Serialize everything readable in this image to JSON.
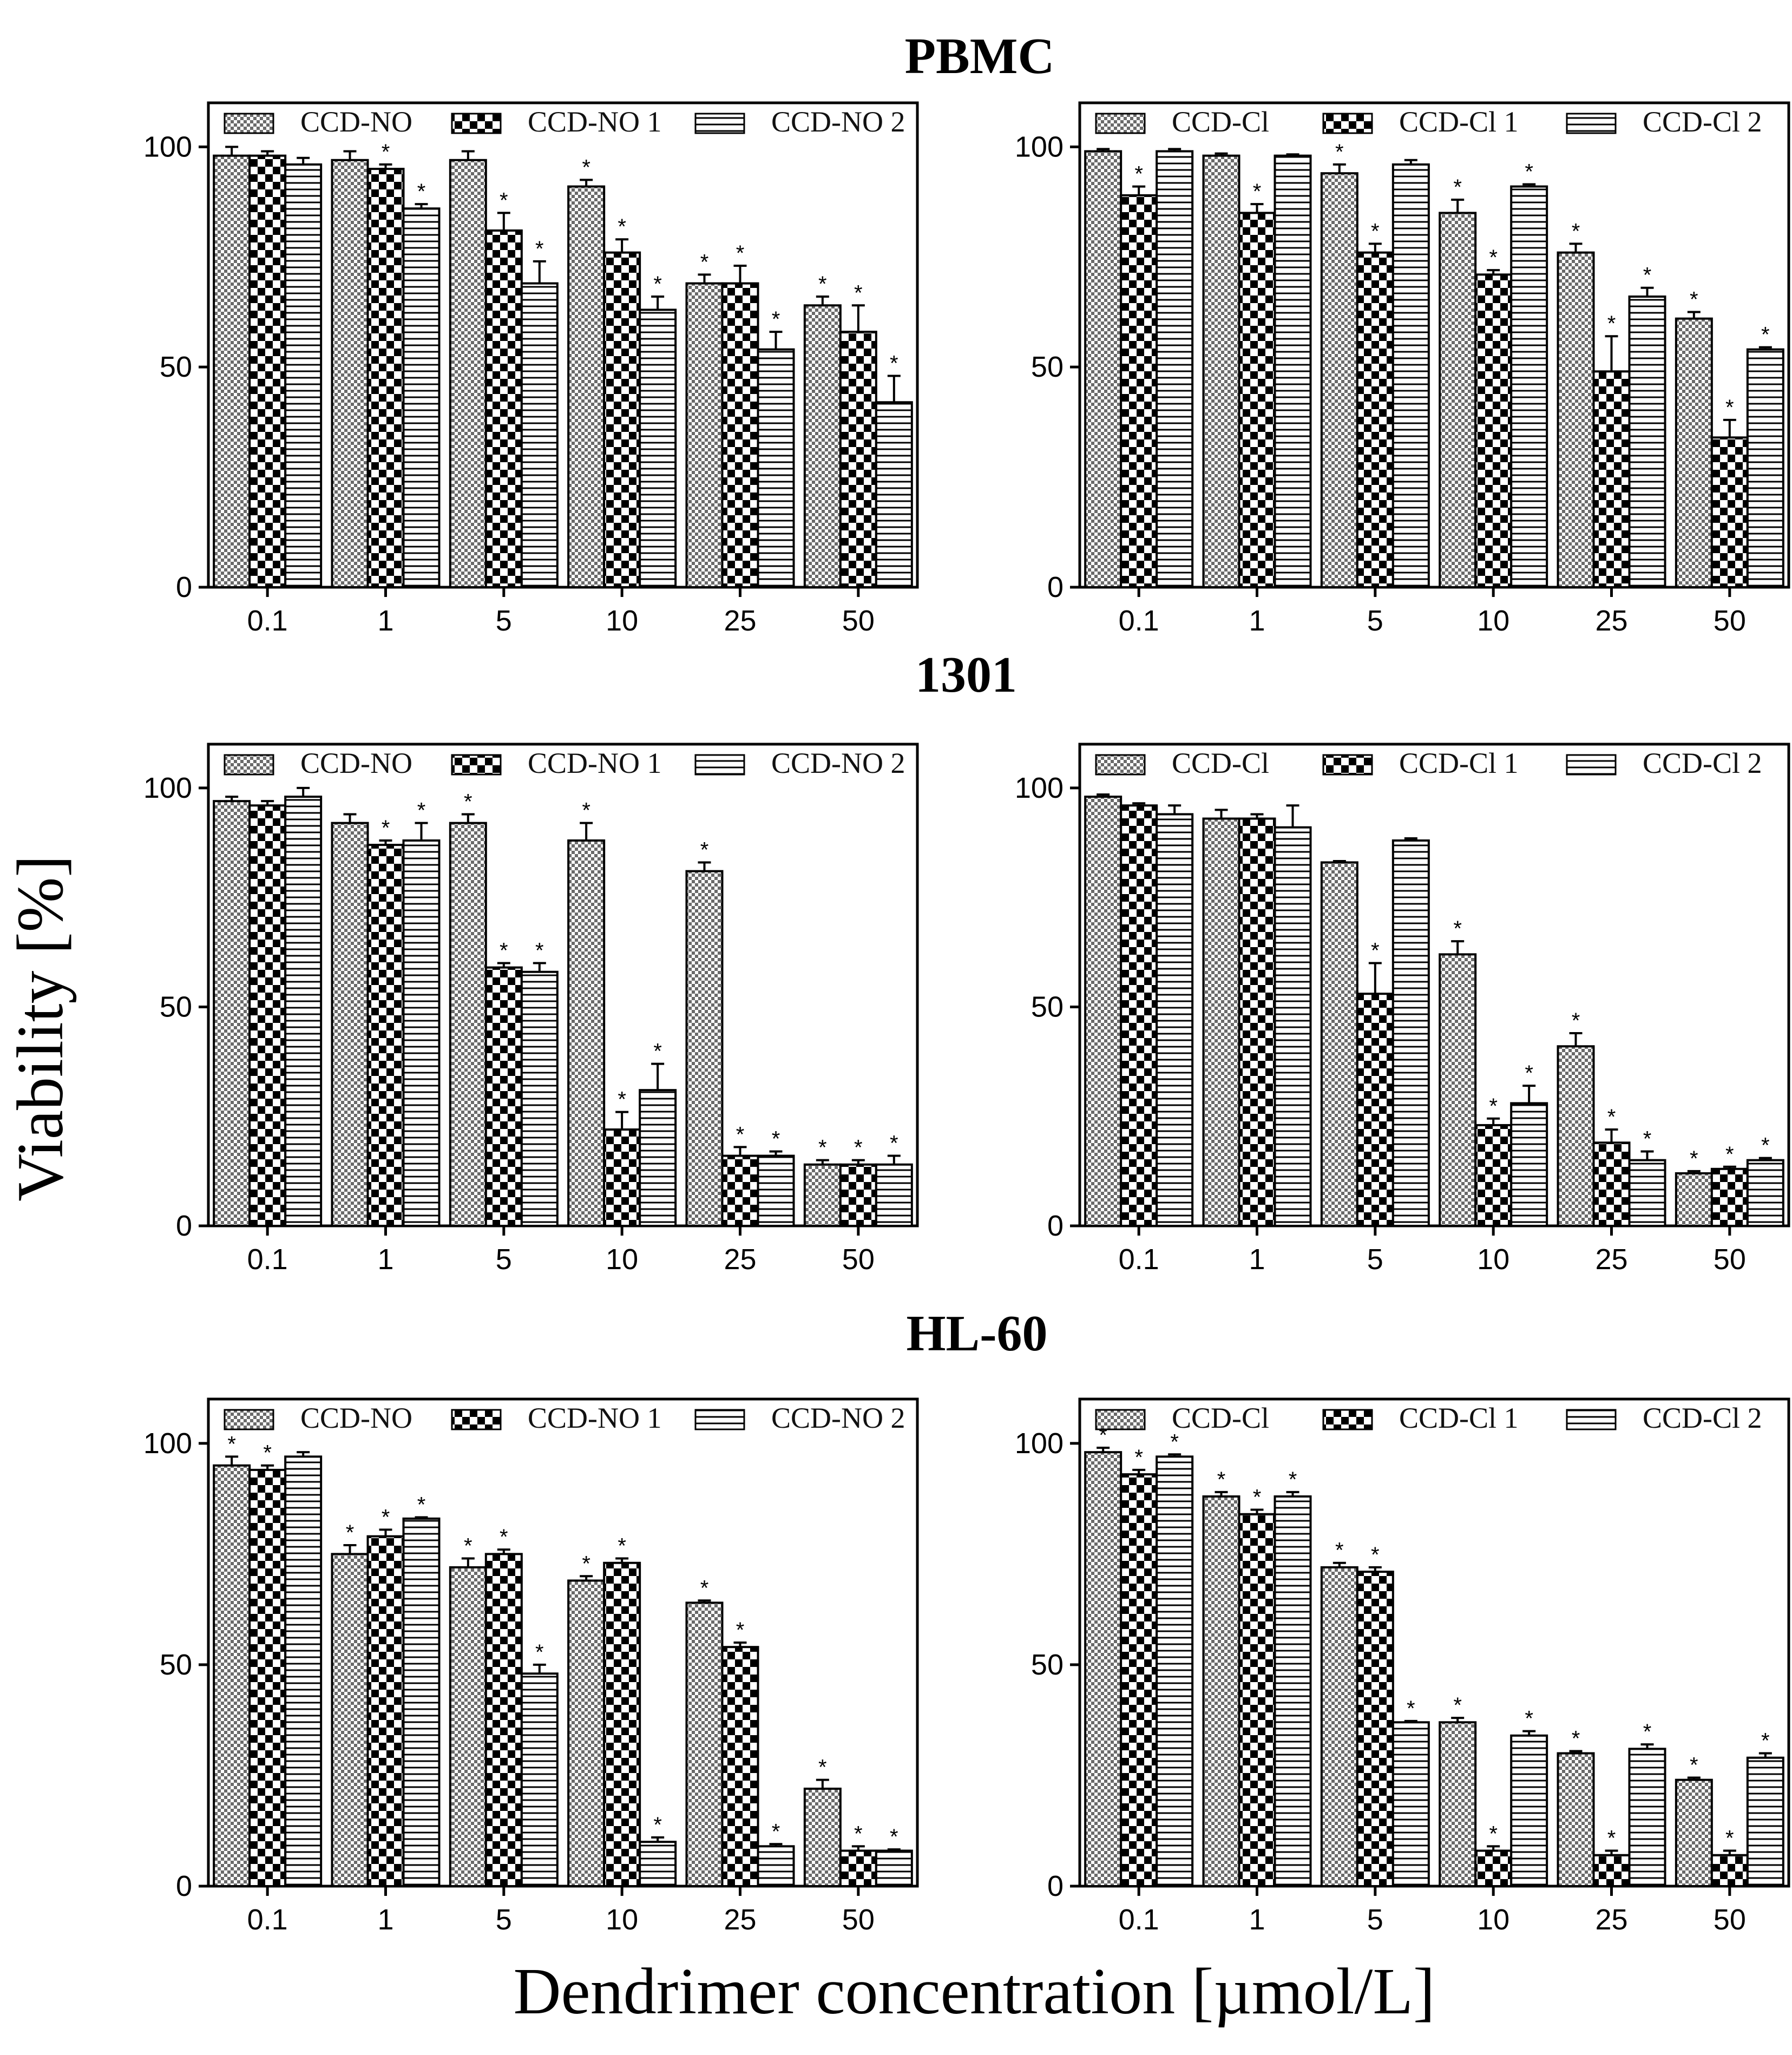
{
  "figure": {
    "ylabel": "Viability [%]",
    "xlabel": "Dendrimer concentration [µmol/L]"
  },
  "rows": [
    "PBMC",
    "1301",
    "HL-60"
  ],
  "chart_data": [
    {
      "type": "bar",
      "row": "PBMC",
      "column": "left",
      "categories": [
        "0.1",
        "1",
        "5",
        "10",
        "25",
        "50"
      ],
      "ylim": [
        0,
        110
      ],
      "yticks": [
        "0",
        "50",
        "100"
      ],
      "series": [
        {
          "name": "CCD-NO",
          "values": [
            98,
            97,
            97,
            91,
            69,
            64
          ],
          "errors": [
            2,
            2,
            2,
            1.5,
            2,
            2
          ],
          "significant": [
            false,
            false,
            false,
            true,
            true,
            true
          ]
        },
        {
          "name": "CCD-NO 1",
          "values": [
            98,
            95,
            81,
            76,
            69,
            58
          ],
          "errors": [
            1,
            1,
            4,
            3,
            4,
            6
          ],
          "significant": [
            false,
            true,
            true,
            true,
            true,
            true
          ]
        },
        {
          "name": "CCD-NO 2",
          "values": [
            96,
            86,
            69,
            63,
            54,
            42
          ],
          "errors": [
            1.5,
            1,
            5,
            3,
            4,
            6
          ],
          "significant": [
            false,
            true,
            true,
            true,
            true,
            true
          ]
        }
      ]
    },
    {
      "type": "bar",
      "row": "PBMC",
      "column": "right",
      "categories": [
        "0.1",
        "1",
        "5",
        "10",
        "25",
        "50"
      ],
      "ylim": [
        0,
        110
      ],
      "yticks": [
        "0",
        "50",
        "100"
      ],
      "series": [
        {
          "name": "CCD-Cl",
          "values": [
            99,
            98,
            94,
            85,
            76,
            61
          ],
          "errors": [
            0.5,
            0.5,
            2,
            3,
            2,
            1.5
          ],
          "significant": [
            false,
            false,
            true,
            true,
            true,
            true
          ]
        },
        {
          "name": "CCD-Cl 1",
          "values": [
            89,
            85,
            76,
            71,
            49,
            34
          ],
          "errors": [
            2,
            2,
            2,
            1,
            8,
            4
          ],
          "significant": [
            true,
            true,
            true,
            true,
            true,
            true
          ]
        },
        {
          "name": "CCD-Cl 2",
          "values": [
            99,
            98,
            96,
            91,
            66,
            54
          ],
          "errors": [
            0.5,
            0.3,
            1,
            0.5,
            2,
            0.5
          ],
          "significant": [
            false,
            false,
            false,
            true,
            true,
            true
          ]
        }
      ]
    },
    {
      "type": "bar",
      "row": "1301",
      "column": "left",
      "categories": [
        "0.1",
        "1",
        "5",
        "10",
        "25",
        "50"
      ],
      "ylim": [
        0,
        110
      ],
      "yticks": [
        "0",
        "50",
        "100"
      ],
      "series": [
        {
          "name": "CCD-NO",
          "values": [
            97,
            92,
            92,
            88,
            81,
            14
          ],
          "errors": [
            1,
            2,
            2,
            4,
            2,
            1
          ],
          "significant": [
            false,
            false,
            true,
            true,
            true,
            true
          ]
        },
        {
          "name": "CCD-NO 1",
          "values": [
            96,
            87,
            59,
            22,
            16,
            14
          ],
          "errors": [
            1,
            1,
            1,
            4,
            2,
            1
          ],
          "significant": [
            false,
            true,
            true,
            true,
            true,
            true
          ]
        },
        {
          "name": "CCD-NO 2",
          "values": [
            98,
            88,
            58,
            31,
            16,
            14
          ],
          "errors": [
            2,
            4,
            2,
            6,
            1,
            2
          ],
          "significant": [
            false,
            true,
            true,
            true,
            true,
            true
          ]
        }
      ]
    },
    {
      "type": "bar",
      "row": "1301",
      "column": "right",
      "categories": [
        "0.1",
        "1",
        "5",
        "10",
        "25",
        "50"
      ],
      "ylim": [
        0,
        110
      ],
      "yticks": [
        "0",
        "50",
        "100"
      ],
      "series": [
        {
          "name": "CCD-Cl",
          "values": [
            98,
            93,
            83,
            62,
            41,
            12
          ],
          "errors": [
            0.5,
            2,
            0.3,
            3,
            3,
            0.5
          ],
          "significant": [
            false,
            false,
            false,
            true,
            true,
            true
          ]
        },
        {
          "name": "CCD-Cl 1",
          "values": [
            96,
            93,
            53,
            23,
            19,
            13
          ],
          "errors": [
            0.5,
            1,
            7,
            1.5,
            3,
            0.5
          ],
          "significant": [
            false,
            false,
            true,
            true,
            true,
            true
          ]
        },
        {
          "name": "CCD-Cl 2",
          "values": [
            94,
            91,
            88,
            28,
            15,
            15
          ],
          "errors": [
            2,
            5,
            0.5,
            4,
            2,
            0.5
          ],
          "significant": [
            false,
            false,
            false,
            true,
            true,
            true
          ]
        }
      ]
    },
    {
      "type": "bar",
      "row": "HL-60",
      "column": "left",
      "categories": [
        "0.1",
        "1",
        "5",
        "10",
        "25",
        "50"
      ],
      "ylim": [
        0,
        110
      ],
      "yticks": [
        "0",
        "50",
        "100"
      ],
      "series": [
        {
          "name": "CCD-NO",
          "values": [
            95,
            75,
            72,
            69,
            64,
            22
          ],
          "errors": [
            2,
            2,
            2,
            1,
            0.5,
            2
          ],
          "significant": [
            true,
            true,
            true,
            true,
            true,
            true
          ]
        },
        {
          "name": "CCD-NO 1",
          "values": [
            94,
            79,
            75,
            73,
            54,
            8
          ],
          "errors": [
            1,
            1.5,
            1,
            1,
            1,
            1
          ],
          "significant": [
            true,
            true,
            true,
            true,
            true,
            true
          ]
        },
        {
          "name": "CCD-NO 2",
          "values": [
            97,
            83,
            48,
            10,
            9,
            8
          ],
          "errors": [
            1,
            0.3,
            2,
            1,
            0.5,
            0.3
          ],
          "significant": [
            false,
            true,
            true,
            true,
            true,
            true
          ]
        }
      ]
    },
    {
      "type": "bar",
      "row": "HL-60",
      "column": "right",
      "categories": [
        "0.1",
        "1",
        "5",
        "10",
        "25",
        "50"
      ],
      "ylim": [
        0,
        110
      ],
      "yticks": [
        "0",
        "50",
        "100"
      ],
      "series": [
        {
          "name": "CCD-Cl",
          "values": [
            98,
            88,
            72,
            37,
            30,
            24
          ],
          "errors": [
            1,
            1,
            1,
            1,
            0.5,
            0.5
          ],
          "significant": [
            true,
            true,
            true,
            true,
            true,
            true
          ]
        },
        {
          "name": "CCD-Cl 1",
          "values": [
            93,
            84,
            71,
            8,
            7,
            7
          ],
          "errors": [
            1,
            1,
            1,
            1,
            1,
            1
          ],
          "significant": [
            true,
            true,
            true,
            true,
            true,
            true
          ]
        },
        {
          "name": "CCD-Cl 2",
          "values": [
            97,
            88,
            37,
            34,
            31,
            29
          ],
          "errors": [
            0.5,
            1,
            0.3,
            1,
            1,
            1
          ],
          "significant": [
            true,
            true,
            true,
            true,
            true,
            true
          ]
        }
      ]
    }
  ]
}
